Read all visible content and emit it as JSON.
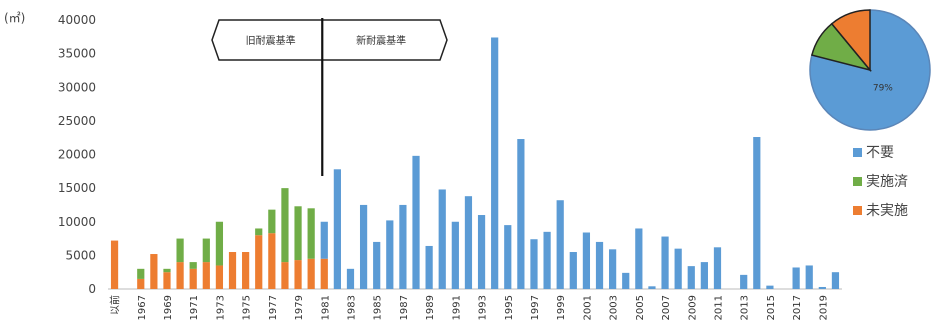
{
  "chart_data": [
    {
      "type": "bar",
      "stacked": true,
      "ylabel": "(㎡)",
      "ylim": [
        0,
        40000
      ],
      "yticks": [
        0,
        5000,
        10000,
        15000,
        20000,
        25000,
        30000,
        35000,
        40000
      ],
      "categories": [
        "以前",
        "1966",
        "1967",
        "1968",
        "1969",
        "1970",
        "1971",
        "1972",
        "1973",
        "1974",
        "1975",
        "1976",
        "1977",
        "1978",
        "1979",
        "1980",
        "1981",
        "1982",
        "1983",
        "1984",
        "1985",
        "1986",
        "1987",
        "1988",
        "1989",
        "1990",
        "1991",
        "1992",
        "1993",
        "1994",
        "1995",
        "1996",
        "1997",
        "1998",
        "1999",
        "2000",
        "2001",
        "2002",
        "2003",
        "2004",
        "2005",
        "2006",
        "2007",
        "2008",
        "2009",
        "2010",
        "2011",
        "2012",
        "2013",
        "2014",
        "2015",
        "2016",
        "2017",
        "2018",
        "2019",
        "2020"
      ],
      "xtick_labels": [
        "以前",
        "1967",
        "1969",
        "1971",
        "1973",
        "1975",
        "1977",
        "1979",
        "1981",
        "1983",
        "1985",
        "1987",
        "1989",
        "1991",
        "1993",
        "1995",
        "1997",
        "1999",
        "2001",
        "2003",
        "2005",
        "2007",
        "2009",
        "2011",
        "2013",
        "2015",
        "2017",
        "2019"
      ],
      "series": [
        {
          "name": "不要",
          "color": "#5b9bd5",
          "values": [
            0,
            0,
            0,
            0,
            0,
            0,
            0,
            0,
            0,
            0,
            0,
            0,
            0,
            0,
            0,
            0,
            5500,
            17800,
            3000,
            12500,
            7000,
            10200,
            12500,
            19800,
            6400,
            14800,
            10000,
            13800,
            11000,
            37400,
            9500,
            22300,
            7400,
            8500,
            13200,
            5500,
            8400,
            7000,
            5900,
            2400,
            9000,
            400,
            7800,
            6000,
            3400,
            4000,
            6200,
            0,
            2100,
            22600,
            500,
            0,
            3200,
            3500,
            300,
            2500
          ]
        },
        {
          "name": "実施済",
          "color": "#70ad47",
          "values": [
            0,
            0,
            1500,
            0,
            500,
            3500,
            1000,
            3500,
            6500,
            0,
            0,
            1000,
            3500,
            11000,
            8000,
            7500,
            0,
            0,
            0,
            0,
            0,
            0,
            0,
            0,
            0,
            0,
            0,
            0,
            0,
            0,
            0,
            0,
            0,
            0,
            0,
            0,
            0,
            0,
            0,
            0,
            0,
            0,
            0,
            0,
            0,
            0,
            0,
            0,
            0,
            0,
            0,
            0,
            0,
            0,
            0,
            0
          ]
        },
        {
          "name": "未実施",
          "color": "#ed7d31",
          "values": [
            7200,
            0,
            1500,
            5200,
            2500,
            4000,
            3000,
            4000,
            3500,
            5500,
            5500,
            8000,
            8300,
            4000,
            4300,
            4500,
            4500,
            0,
            0,
            0,
            0,
            0,
            0,
            0,
            0,
            0,
            0,
            0,
            0,
            0,
            0,
            0,
            0,
            0,
            0,
            0,
            0,
            0,
            0,
            0,
            0,
            0,
            0,
            0,
            0,
            0,
            0,
            0,
            0,
            0,
            0,
            0,
            0,
            0,
            0,
            0
          ]
        }
      ],
      "legend_position": "right",
      "annotations": {
        "old_standard": "旧耐震基準",
        "new_standard": "新耐震基準"
      }
    },
    {
      "type": "pie",
      "slices": [
        {
          "name": "不要",
          "value": 79,
          "color": "#5b9bd5",
          "label": "79%"
        },
        {
          "name": "実施済",
          "value": 10,
          "color": "#70ad47"
        },
        {
          "name": "未実施",
          "value": 11,
          "color": "#ed7d31"
        }
      ]
    }
  ]
}
